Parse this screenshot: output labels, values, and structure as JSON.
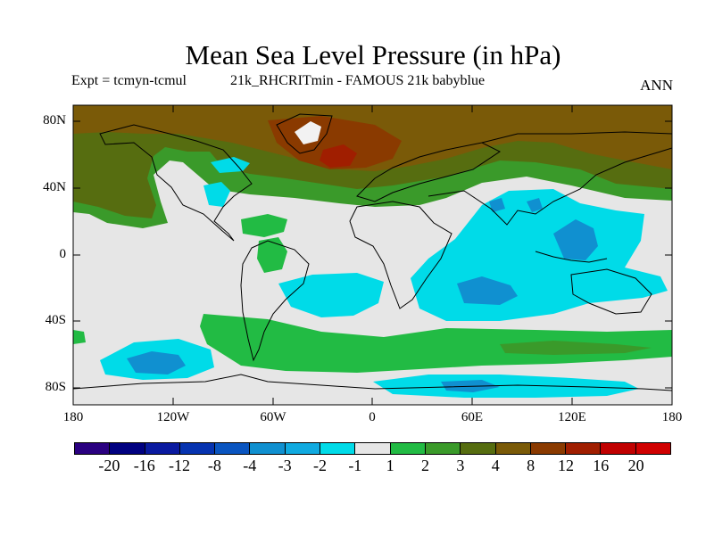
{
  "title": "Mean Sea Level Pressure (in hPa)",
  "subtitle_left": "Expt = tcmyn-tcmul",
  "subtitle_mid": "21k_RHCRITmin - FAMOUS 21k babyblue",
  "season": "ANN",
  "chart_data": {
    "type": "heatmap",
    "projection": "cylindrical-equidistant",
    "variable": "Mean Sea Level Pressure difference",
    "units": "hPa",
    "lon_range": [
      -180,
      180
    ],
    "lat_range": [
      -90,
      90
    ],
    "y_ticks": [
      "80N",
      "40N",
      "0",
      "40S",
      "80S"
    ],
    "y_tick_lats": [
      80,
      40,
      0,
      -40,
      -80
    ],
    "x_ticks": [
      "180",
      "120W",
      "60W",
      "0",
      "60E",
      "120E",
      "180"
    ],
    "x_tick_lons": [
      -180,
      -120,
      -60,
      0,
      60,
      120,
      180
    ],
    "contour_levels": [
      "-20",
      "-16",
      "-12",
      "-8",
      "-4",
      "-3",
      "-2",
      "-1",
      "1",
      "2",
      "3",
      "4",
      "8",
      "12",
      "16",
      "20"
    ],
    "colors": [
      "#2a0080",
      "#000080",
      "#0a1aa0",
      "#0633b0",
      "#0a55c0",
      "#1090d0",
      "#10aae0",
      "#00dbe8",
      "#e6e6e6",
      "#22bb44",
      "#3a9a2a",
      "#566d10",
      "#7a5a08",
      "#8a3a00",
      "#a01e00",
      "#c00000",
      "#d00000"
    ]
  }
}
